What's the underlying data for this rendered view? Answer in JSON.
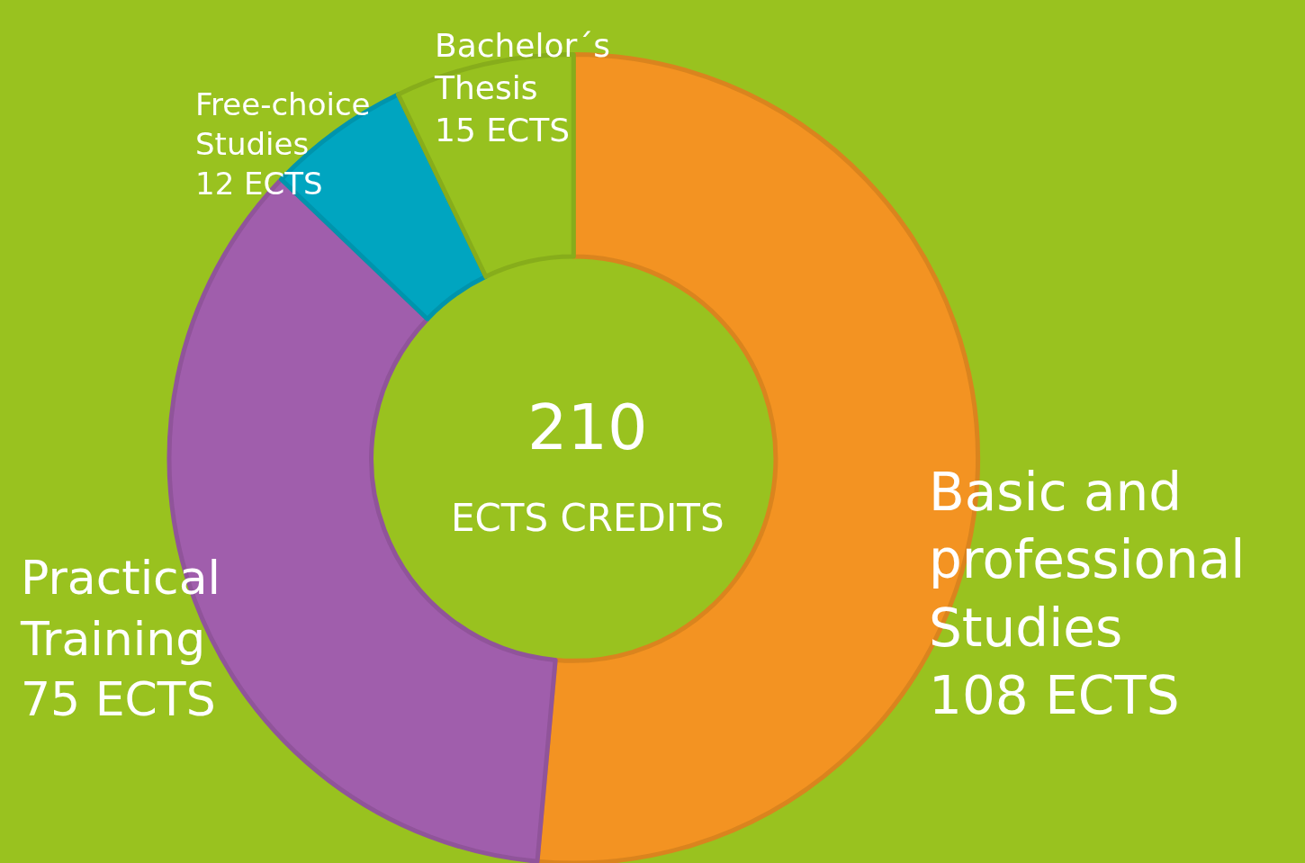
{
  "chart_data": {
    "type": "donut",
    "categories": [
      "Basic and professional Studies",
      "Practical Training",
      "Free-choice Studies",
      "Bachelor´s Thesis"
    ],
    "values": [
      108,
      75,
      12,
      15
    ],
    "value_labels": [
      "108 ECTS",
      "75 ECTS",
      "12 ECTS",
      "15 ECTS"
    ],
    "colors": [
      "#f39322",
      "#a05eac",
      "#00a5c0",
      "#97c11f"
    ],
    "annotations": [
      "210",
      "ECTS CREDITS"
    ],
    "legend": false
  }
}
